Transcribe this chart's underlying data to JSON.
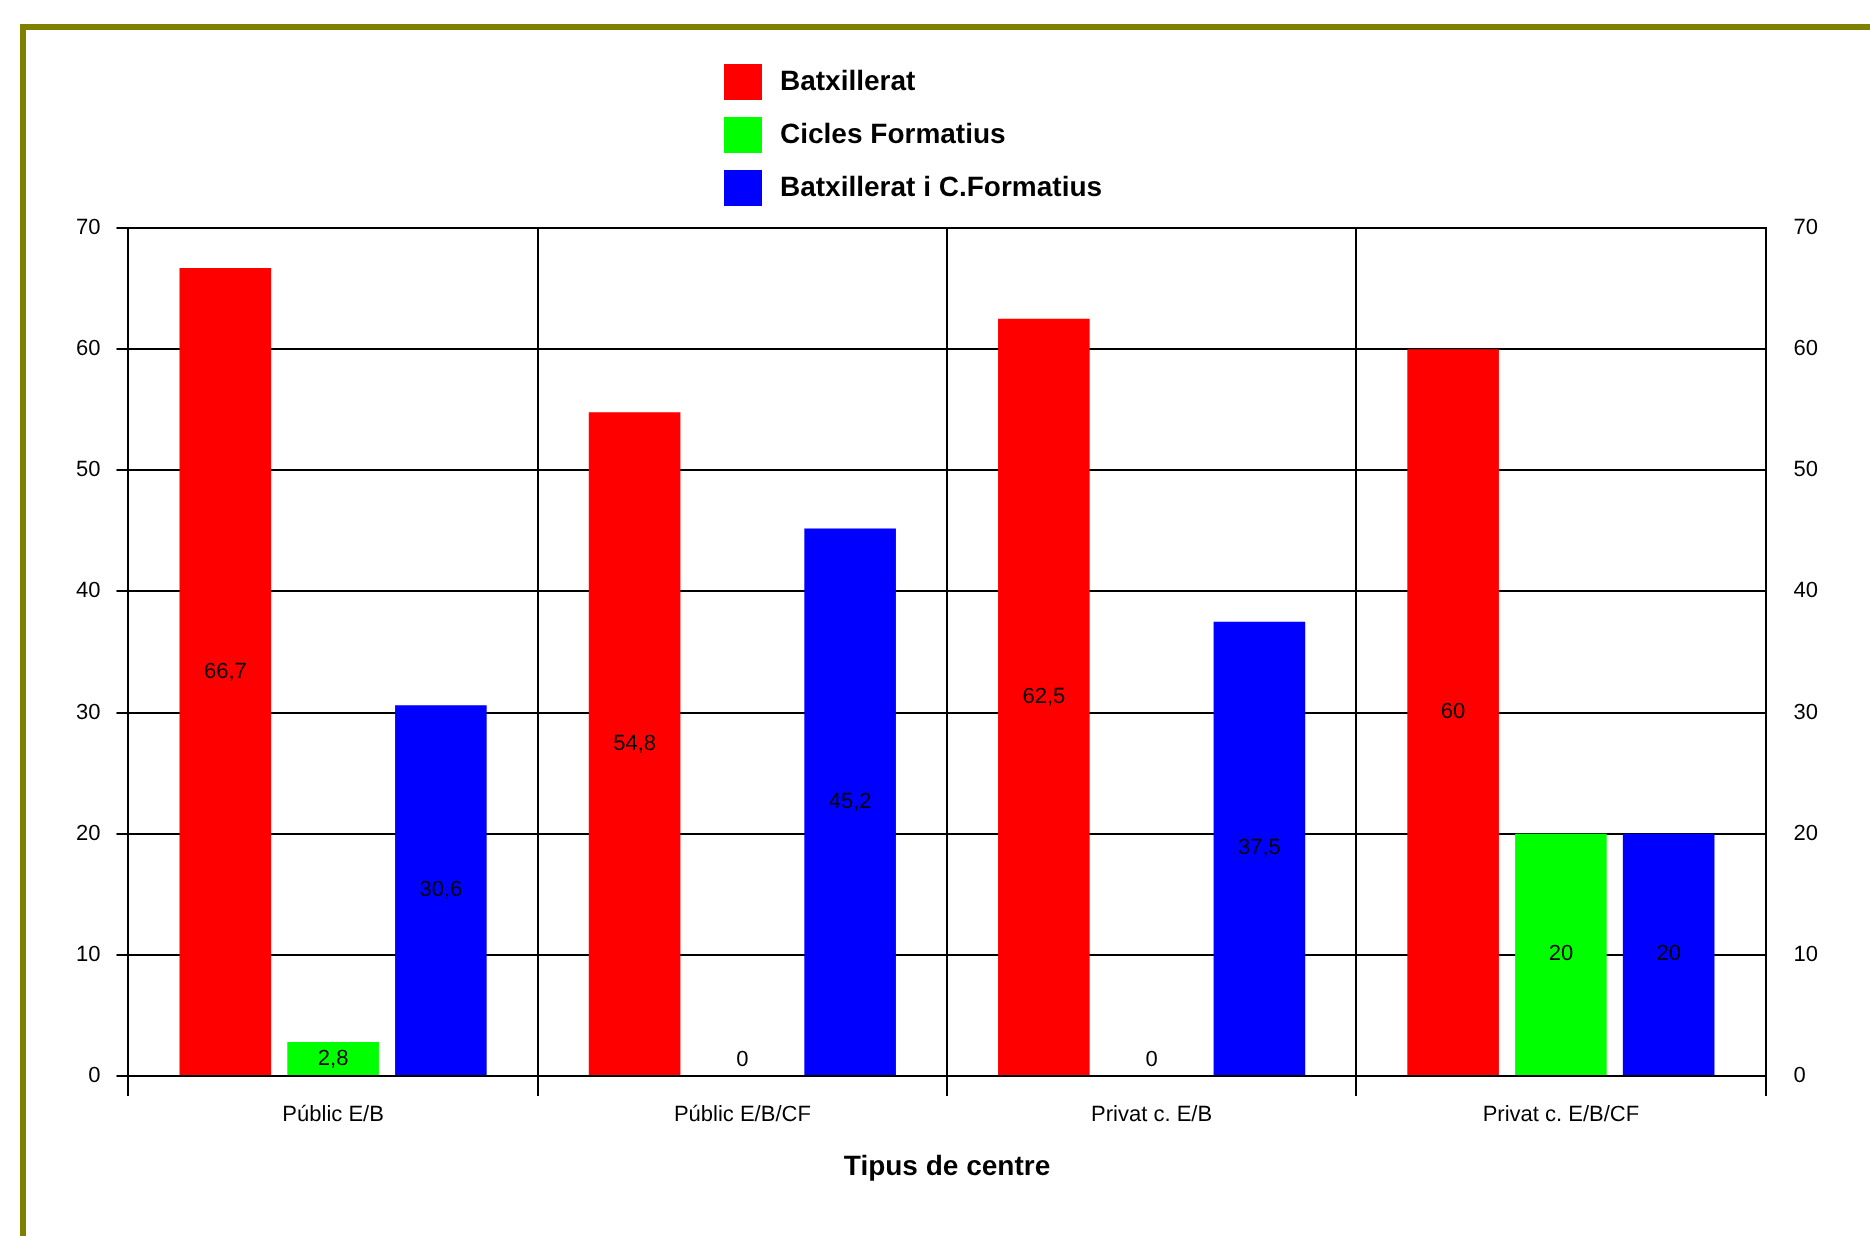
{
  "chart_data": {
    "type": "bar",
    "xlabel": "Tipus de centre",
    "categories": [
      "Públic E/B",
      "Públic E/B/CF",
      "Privat c. E/B",
      "Privat c. E/B/CF"
    ],
    "series": [
      {
        "name": "Batxillerat",
        "color": "#ff0000",
        "values": [
          66.7,
          54.8,
          62.5,
          60
        ],
        "value_labels": [
          "66,7",
          "54,8",
          "62,5",
          "60"
        ]
      },
      {
        "name": "Cicles Formatius",
        "color": "#00ff00",
        "values": [
          2.8,
          0,
          0,
          20
        ],
        "value_labels": [
          "2,8",
          "0",
          "0",
          "20"
        ]
      },
      {
        "name": "Batxillerat i C.Formatius",
        "color": "#0000ff",
        "values": [
          30.6,
          45.2,
          37.5,
          20
        ],
        "value_labels": [
          "30,6",
          "45,2",
          "37,5",
          "20"
        ]
      }
    ],
    "ylim": [
      0,
      70
    ],
    "yticks": [
      0,
      10,
      20,
      30,
      40,
      50,
      60,
      70
    ],
    "y2lim": [
      0,
      70
    ],
    "y2ticks": [
      0,
      10,
      20,
      30,
      40,
      50,
      60,
      70
    ],
    "grid": true,
    "legend": "top"
  }
}
